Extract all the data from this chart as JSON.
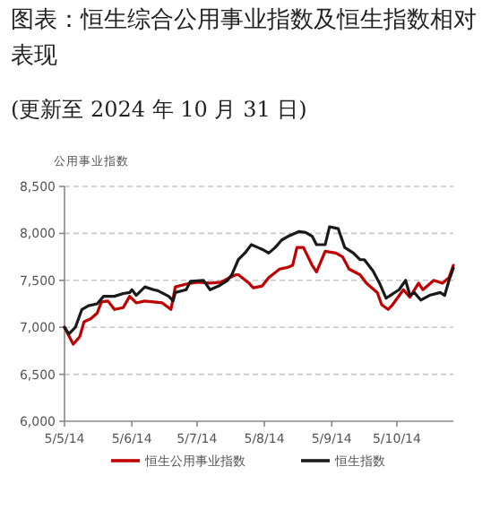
{
  "chart_data": {
    "type": "line",
    "title": "图表：恒生综合公用事业指数及恒生指数相对表现",
    "subtitle": "(更新至 2024 年 10 月 31 日)",
    "ylabel": "公用事业指数",
    "xlim": [
      "2014-05-05",
      "2014-10-31"
    ],
    "xticks": [
      {
        "value": "2014-05-05",
        "label": "5/5/14"
      },
      {
        "value": "2014-06-05",
        "label": "5/6/14"
      },
      {
        "value": "2014-07-05",
        "label": "5/7/14"
      },
      {
        "value": "2014-08-05",
        "label": "5/8/14"
      },
      {
        "value": "2014-09-05",
        "label": "5/9/14"
      },
      {
        "value": "2014-10-05",
        "label": "5/10/14"
      }
    ],
    "ylim": [
      6000,
      8500
    ],
    "yticks": [
      {
        "value": 6000,
        "label": "6,000"
      },
      {
        "value": 6500,
        "label": "6,500"
      },
      {
        "value": 7000,
        "label": "7,000"
      },
      {
        "value": 7500,
        "label": "7,500"
      },
      {
        "value": 8000,
        "label": "8,000"
      },
      {
        "value": 8500,
        "label": "8,500"
      }
    ],
    "grid": "y",
    "legend": "bottom",
    "marker": "none",
    "line_style": "solid",
    "series": [
      {
        "name": "恒生公用事业指数",
        "color": "#c00000",
        "x": [
          "2014-05-05",
          "2014-05-09",
          "2014-05-12",
          "2014-05-14",
          "2014-05-17",
          "2014-05-20",
          "2014-05-22",
          "2014-05-25",
          "2014-05-28",
          "2014-06-01",
          "2014-06-04",
          "2014-06-07",
          "2014-06-11",
          "2014-06-15",
          "2014-06-19",
          "2014-06-23",
          "2014-06-25",
          "2014-06-30",
          "2014-07-05",
          "2014-07-11",
          "2014-07-16",
          "2014-07-20",
          "2014-07-23",
          "2014-07-24",
          "2014-07-29",
          "2014-07-30",
          "2014-07-31",
          "2014-08-04",
          "2014-08-07",
          "2014-08-12",
          "2014-08-16",
          "2014-08-18",
          "2014-08-20",
          "2014-08-23",
          "2014-08-27",
          "2014-08-29",
          "2014-09-02",
          "2014-09-07",
          "2014-09-10",
          "2014-09-13",
          "2014-09-18",
          "2014-09-21",
          "2014-09-26",
          "2014-09-28",
          "2014-10-01",
          "2014-10-03",
          "2014-10-08",
          "2014-10-11",
          "2014-10-15",
          "2014-10-17",
          "2014-10-22",
          "2014-10-26",
          "2014-10-29",
          "2014-10-31"
        ],
        "values": [
          7000,
          6820,
          6900,
          7060,
          7090,
          7150,
          7270,
          7280,
          7190,
          7210,
          7330,
          7260,
          7280,
          7270,
          7260,
          7190,
          7430,
          7460,
          7480,
          7470,
          7480,
          7530,
          7560,
          7560,
          7470,
          7440,
          7420,
          7440,
          7530,
          7620,
          7640,
          7660,
          7850,
          7850,
          7660,
          7590,
          7810,
          7790,
          7750,
          7620,
          7560,
          7470,
          7370,
          7240,
          7190,
          7240,
          7400,
          7320,
          7470,
          7400,
          7500,
          7470,
          7530,
          7660
        ]
      },
      {
        "name": "恒生指数",
        "color": "#1a1a1a",
        "x": [
          "2014-05-05",
          "2014-05-07",
          "2014-05-10",
          "2014-05-13",
          "2014-05-16",
          "2014-05-20",
          "2014-05-23",
          "2014-05-28",
          "2014-06-01",
          "2014-06-04",
          "2014-06-05",
          "2014-06-07",
          "2014-06-11",
          "2014-06-15",
          "2014-06-17",
          "2014-06-22",
          "2014-06-24",
          "2014-06-25",
          "2014-06-30",
          "2014-07-02",
          "2014-07-08",
          "2014-07-11",
          "2014-07-15",
          "2014-07-19",
          "2014-07-21",
          "2014-07-24",
          "2014-07-27",
          "2014-07-30",
          "2014-08-02",
          "2014-08-04",
          "2014-08-07",
          "2014-08-10",
          "2014-08-13",
          "2014-08-16",
          "2014-08-18",
          "2014-08-21",
          "2014-08-24",
          "2014-08-27",
          "2014-08-29",
          "2014-09-02",
          "2014-09-04",
          "2014-09-08",
          "2014-09-11",
          "2014-09-15",
          "2014-09-18",
          "2014-09-20",
          "2014-09-24",
          "2014-09-27",
          "2014-09-30",
          "2014-10-02",
          "2014-10-06",
          "2014-10-09",
          "2014-10-11",
          "2014-10-13",
          "2014-10-16",
          "2014-10-20",
          "2014-10-25",
          "2014-10-27",
          "2014-10-29",
          "2014-10-31"
        ],
        "values": [
          7000,
          6930,
          7000,
          7190,
          7230,
          7250,
          7330,
          7330,
          7360,
          7370,
          7400,
          7340,
          7430,
          7400,
          7390,
          7330,
          7280,
          7370,
          7400,
          7490,
          7500,
          7400,
          7440,
          7500,
          7560,
          7720,
          7790,
          7880,
          7850,
          7830,
          7790,
          7850,
          7930,
          7970,
          7990,
          8020,
          8010,
          7970,
          7880,
          7880,
          8070,
          8050,
          7850,
          7790,
          7720,
          7720,
          7600,
          7470,
          7310,
          7340,
          7400,
          7500,
          7340,
          7370,
          7290,
          7340,
          7370,
          7340,
          7500,
          7630
        ]
      }
    ]
  }
}
